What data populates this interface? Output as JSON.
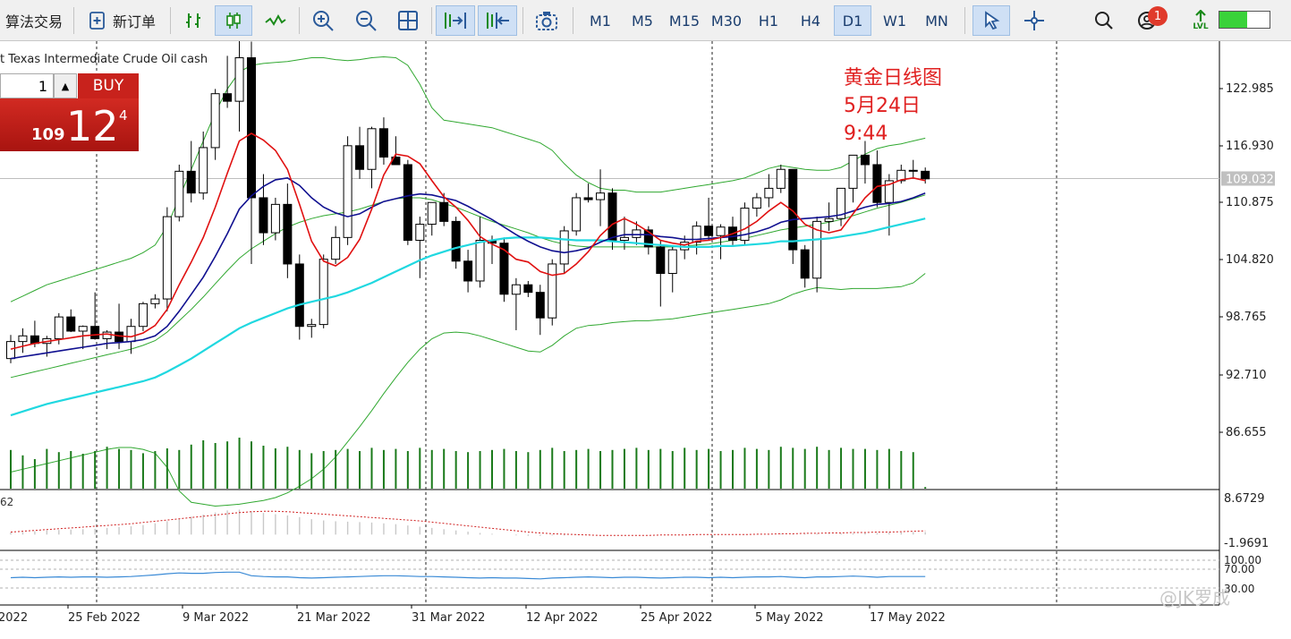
{
  "toolbar": {
    "algo_trading": "算法交易",
    "new_order": "新订单",
    "timeframes": [
      "M1",
      "M5",
      "M15",
      "M30",
      "H1",
      "H4",
      "D1",
      "W1",
      "MN"
    ],
    "active_timeframe": "D1",
    "notification_count": "1",
    "signal_label": "LVL"
  },
  "chart": {
    "symbol_title": "t Texas Intermediate Crude Oil cash",
    "current_price": "109.032",
    "price_labels": [
      "122.985",
      "116.930",
      "110.875",
      "104.820",
      "98.765",
      "92.710",
      "86.655"
    ],
    "indicator1_name": "62",
    "indicator1_labels": [
      "8.6729",
      "-1.9691"
    ],
    "indicator2_labels": [
      "100.00",
      "70.00",
      "30.00"
    ],
    "date_labels": [
      "2022",
      "25 Feb 2022",
      "9 Mar 2022",
      "21 Mar 2022",
      "31 Mar 2022",
      "12 Apr 2022",
      "25 Apr 2022",
      "5 May 2022",
      "17 May 2022"
    ]
  },
  "trade_panel": {
    "quantity": "1",
    "buy_label": "BUY",
    "price_small": "109",
    "price_big": "12",
    "price_sup": "4"
  },
  "annotation": {
    "line1": "黄金日线图",
    "line2": "5月24日",
    "line3": "9:44"
  },
  "watermark": "@JK罗成",
  "colors": {
    "bull_candle": "#ffffff",
    "bear_candle": "#000000",
    "ma_fast": "#e01010",
    "ma_mid": "#101090",
    "ma_slow": "#20d8e0",
    "bands": "#30a830",
    "volume": "#1a7a1a",
    "annotation": "#e02020"
  },
  "chart_data": {
    "type": "candlestick",
    "candles": [
      [
        90.0,
        92.5,
        89.5,
        91.8
      ],
      [
        91.8,
        93.2,
        90.6,
        92.4
      ],
      [
        92.4,
        94.0,
        91.2,
        91.6
      ],
      [
        91.6,
        92.4,
        90.2,
        92.1
      ],
      [
        92.1,
        94.8,
        91.5,
        94.4
      ],
      [
        94.4,
        95.2,
        92.8,
        92.9
      ],
      [
        92.9,
        93.5,
        91.0,
        93.4
      ],
      [
        93.4,
        97.0,
        92.0,
        92.1
      ],
      [
        92.1,
        93.0,
        91.0,
        92.8
      ],
      [
        92.8,
        95.8,
        91.0,
        91.8
      ],
      [
        91.8,
        94.2,
        90.5,
        93.4
      ],
      [
        93.4,
        96.0,
        92.9,
        95.8
      ],
      [
        95.8,
        96.8,
        95.3,
        96.3
      ],
      [
        96.3,
        106.0,
        95.0,
        105.0
      ],
      [
        105.0,
        110.5,
        104.5,
        109.8
      ],
      [
        109.8,
        113.0,
        106.5,
        107.5
      ],
      [
        107.5,
        114.0,
        106.8,
        112.3
      ],
      [
        112.3,
        118.5,
        111.0,
        118.0
      ],
      [
        118.0,
        122.0,
        116.5,
        117.2
      ],
      [
        117.2,
        124.5,
        114.0,
        121.8
      ],
      [
        121.8,
        123.5,
        100.0,
        107.0
      ],
      [
        107.0,
        109.5,
        102.0,
        103.3
      ],
      [
        103.3,
        107.0,
        102.5,
        106.3
      ],
      [
        106.3,
        108.5,
        98.5,
        100.0
      ],
      [
        100.0,
        101.0,
        92.0,
        93.4
      ],
      [
        93.4,
        94.2,
        92.2,
        93.6
      ],
      [
        93.6,
        101.0,
        93.2,
        100.5
      ],
      [
        100.5,
        104.0,
        100.0,
        102.8
      ],
      [
        102.8,
        113.5,
        102.0,
        112.5
      ],
      [
        112.5,
        114.5,
        109.0,
        110.0
      ],
      [
        110.0,
        114.5,
        108.0,
        114.3
      ],
      [
        114.3,
        115.5,
        110.5,
        111.3
      ],
      [
        111.3,
        113.5,
        110.5,
        110.5
      ],
      [
        110.5,
        111.0,
        102.0,
        102.5
      ],
      [
        102.5,
        105.0,
        98.5,
        104.2
      ],
      [
        104.2,
        106.5,
        103.0,
        106.5
      ],
      [
        106.5,
        107.5,
        104.0,
        104.5
      ],
      [
        104.5,
        105.0,
        99.5,
        100.3
      ],
      [
        100.3,
        101.5,
        97.0,
        98.2
      ],
      [
        98.2,
        105.0,
        97.5,
        102.5
      ],
      [
        102.5,
        103.0,
        100.0,
        102.2
      ],
      [
        102.2,
        102.8,
        96.0,
        96.8
      ],
      [
        96.8,
        98.5,
        93.0,
        97.8
      ],
      [
        97.8,
        98.2,
        96.5,
        97.0
      ],
      [
        97.0,
        97.8,
        92.5,
        94.3
      ],
      [
        94.3,
        100.5,
        93.5,
        100.0
      ],
      [
        100.0,
        104.0,
        99.0,
        103.5
      ],
      [
        103.5,
        107.5,
        103.0,
        107.0
      ],
      [
        107.0,
        108.5,
        106.5,
        106.8
      ],
      [
        106.8,
        110.0,
        104.0,
        107.5
      ],
      [
        107.5,
        108.0,
        101.5,
        102.5
      ],
      [
        102.5,
        105.0,
        101.5,
        102.8
      ],
      [
        102.8,
        104.5,
        102.0,
        103.6
      ],
      [
        103.6,
        104.0,
        101.0,
        101.8
      ],
      [
        101.8,
        102.5,
        95.5,
        99.0
      ],
      [
        99.0,
        101.8,
        97.0,
        101.5
      ],
      [
        101.5,
        103.0,
        100.5,
        102.3
      ],
      [
        102.3,
        104.5,
        101.0,
        104.0
      ],
      [
        104.0,
        107.0,
        102.5,
        103.0
      ],
      [
        103.0,
        104.2,
        100.5,
        103.9
      ],
      [
        103.9,
        105.0,
        102.0,
        102.5
      ],
      [
        102.5,
        106.5,
        102.0,
        105.9
      ],
      [
        105.9,
        107.5,
        105.0,
        107.0
      ],
      [
        107.0,
        109.5,
        106.0,
        108.0
      ],
      [
        108.0,
        110.5,
        107.5,
        110.0
      ],
      [
        110.0,
        110.0,
        100.0,
        101.5
      ],
      [
        101.5,
        102.0,
        97.5,
        98.5
      ],
      [
        98.5,
        105.0,
        97.0,
        104.5
      ],
      [
        104.5,
        106.5,
        103.5,
        104.8
      ],
      [
        104.8,
        108.0,
        104.0,
        108.0
      ],
      [
        108.0,
        111.5,
        106.5,
        111.5
      ],
      [
        111.5,
        113.0,
        108.5,
        110.5
      ],
      [
        110.5,
        112.0,
        106.0,
        106.5
      ],
      [
        106.5,
        109.5,
        103.0,
        108.8
      ],
      [
        108.8,
        110.5,
        108.5,
        109.9
      ],
      [
        109.9,
        111.0,
        109.0,
        109.8
      ],
      [
        109.8,
        110.2,
        108.5,
        109.0
      ]
    ],
    "ma_fast": [
      91.0,
      91.3,
      91.6,
      91.8,
      92.0,
      92.2,
      92.4,
      92.5,
      92.6,
      92.4,
      92.3,
      92.7,
      93.5,
      95.2,
      97.8,
      100.2,
      102.8,
      106.0,
      109.6,
      113.0,
      113.8,
      113.1,
      112.0,
      110.0,
      106.3,
      102.4,
      100.3,
      99.8,
      100.7,
      102.6,
      105.8,
      109.4,
      111.6,
      111.4,
      110.6,
      108.8,
      107.1,
      106.0,
      104.6,
      102.9,
      102.1,
      101.5,
      100.5,
      100.2,
      99.2,
      98.8,
      99.0,
      100.0,
      101.3,
      103.0,
      104.2,
      104.8,
      104.2,
      103.4,
      102.5,
      102.2,
      102.0,
      102.4,
      102.5,
      102.8,
      103.2,
      103.7,
      104.5,
      105.6,
      106.5,
      105.6,
      104.2,
      103.6,
      103.3,
      103.6,
      105.3,
      107.0,
      108.2,
      108.4,
      108.9,
      109.1,
      108.8
    ],
    "ma_mid": [
      90.0,
      90.2,
      90.4,
      90.6,
      90.8,
      91.0,
      91.2,
      91.4,
      91.6,
      91.7,
      91.8,
      92.0,
      92.4,
      93.4,
      95.0,
      96.8,
      98.6,
      100.8,
      103.2,
      105.8,
      107.2,
      108.2,
      108.9,
      109.1,
      108.3,
      107.0,
      106.0,
      105.4,
      105.0,
      105.3,
      106.0,
      106.6,
      106.9,
      107.2,
      107.4,
      107.3,
      107.0,
      106.7,
      106.1,
      105.4,
      104.7,
      103.9,
      103.1,
      102.4,
      101.8,
      101.4,
      101.2,
      101.4,
      101.7,
      102.3,
      102.8,
      103.1,
      103.1,
      103.1,
      102.9,
      102.8,
      102.6,
      102.6,
      102.7,
      102.8,
      102.9,
      103.1,
      103.4,
      103.8,
      104.4,
      104.7,
      104.8,
      104.9,
      105.0,
      105.2,
      105.6,
      106.0,
      106.3,
      106.4,
      106.6,
      107.0,
      107.5
    ],
    "ma_slow": [
      84.0,
      84.4,
      84.8,
      85.2,
      85.5,
      85.8,
      86.1,
      86.4,
      86.7,
      87.0,
      87.3,
      87.6,
      88.0,
      88.6,
      89.3,
      90.0,
      90.8,
      91.6,
      92.4,
      93.2,
      93.8,
      94.3,
      94.8,
      95.3,
      95.7,
      96.0,
      96.3,
      96.6,
      97.0,
      97.5,
      98.0,
      98.6,
      99.2,
      99.8,
      100.4,
      100.9,
      101.3,
      101.7,
      102.0,
      102.3,
      102.5,
      102.7,
      102.8,
      102.8,
      102.8,
      102.7,
      102.6,
      102.5,
      102.5,
      102.5,
      102.4,
      102.3,
      102.2,
      102.1,
      102.0,
      101.9,
      101.8,
      101.8,
      101.8,
      101.9,
      101.9,
      102.0,
      102.1,
      102.2,
      102.4,
      102.4,
      102.5,
      102.6,
      102.7,
      102.9,
      103.1,
      103.3,
      103.6,
      103.9,
      104.2,
      104.5,
      104.8
    ],
    "band_upper": [
      96.0,
      96.6,
      97.2,
      97.8,
      98.2,
      98.6,
      99.0,
      99.4,
      99.8,
      100.2,
      100.6,
      101.2,
      102.0,
      104.0,
      107.0,
      110.0,
      113.0,
      116.0,
      118.5,
      120.3,
      121.0,
      121.2,
      121.3,
      121.4,
      121.6,
      121.8,
      121.8,
      121.6,
      121.5,
      121.6,
      121.8,
      121.9,
      121.8,
      121.0,
      119.0,
      116.5,
      115.2,
      115.0,
      114.8,
      114.6,
      114.4,
      114.0,
      113.6,
      113.2,
      112.8,
      112.0,
      110.6,
      109.4,
      108.6,
      108.0,
      107.8,
      107.8,
      107.6,
      107.6,
      107.6,
      107.8,
      108.0,
      108.2,
      108.4,
      108.6,
      108.8,
      109.1,
      109.6,
      110.1,
      110.4,
      110.2,
      110.0,
      109.9,
      109.9,
      110.2,
      110.9,
      111.6,
      112.2,
      112.5,
      112.7,
      113.0,
      113.3
    ],
    "band_mid": [
      88.0,
      88.3,
      88.6,
      88.9,
      89.2,
      89.5,
      89.8,
      90.1,
      90.4,
      90.7,
      91.0,
      91.4,
      91.9,
      92.8,
      94.0,
      95.2,
      96.5,
      97.9,
      99.3,
      100.6,
      101.6,
      102.4,
      103.2,
      103.9,
      104.4,
      104.8,
      105.1,
      105.3,
      105.5,
      105.8,
      106.2,
      106.6,
      106.9,
      107.0,
      107.0,
      106.8,
      106.4,
      106.0,
      105.5,
      105.0,
      104.5,
      104.1,
      103.7,
      103.3,
      102.8,
      102.4,
      102.1,
      101.9,
      101.8,
      101.8,
      101.8,
      101.8,
      101.8,
      101.8,
      101.8,
      101.8,
      101.9,
      102.0,
      102.1,
      102.3,
      102.5,
      102.7,
      103.0,
      103.3,
      103.6,
      103.8,
      104.0,
      104.2,
      104.4,
      104.7,
      105.1,
      105.5,
      105.9,
      106.2,
      106.5,
      106.9,
      107.3
    ],
    "band_lower": [
      78.0,
      78.3,
      78.6,
      78.9,
      79.2,
      79.5,
      79.8,
      80.1,
      80.4,
      80.6,
      80.6,
      80.4,
      80.0,
      78.5,
      76.0,
      74.8,
      74.6,
      74.4,
      74.5,
      74.6,
      74.8,
      75.0,
      75.3,
      75.8,
      76.5,
      77.3,
      78.3,
      79.6,
      81.2,
      82.8,
      84.5,
      86.3,
      88.0,
      89.6,
      91.0,
      92.1,
      92.7,
      92.8,
      92.7,
      92.4,
      92.0,
      91.6,
      91.2,
      90.8,
      90.7,
      91.4,
      92.4,
      93.2,
      93.5,
      93.6,
      93.8,
      93.9,
      94.0,
      94.0,
      94.1,
      94.2,
      94.4,
      94.6,
      94.8,
      95.0,
      95.2,
      95.4,
      95.6,
      95.8,
      96.2,
      96.8,
      97.2,
      97.5,
      97.4,
      97.3,
      97.4,
      97.4,
      97.4,
      97.5,
      97.6,
      98.0,
      99.0
    ],
    "volume": [
      0.72,
      0.62,
      0.55,
      0.74,
      0.68,
      0.7,
      0.65,
      0.7,
      0.78,
      0.74,
      0.72,
      0.66,
      0.7,
      0.75,
      0.72,
      0.82,
      0.9,
      0.85,
      0.88,
      0.95,
      0.88,
      0.8,
      0.75,
      0.78,
      0.72,
      0.66,
      0.7,
      0.72,
      0.74,
      0.7,
      0.76,
      0.72,
      0.74,
      0.7,
      0.76,
      0.72,
      0.74,
      0.7,
      0.68,
      0.7,
      0.72,
      0.74,
      0.7,
      0.68,
      0.72,
      0.76,
      0.7,
      0.72,
      0.74,
      0.7,
      0.72,
      0.74,
      0.76,
      0.72,
      0.74,
      0.7,
      0.76,
      0.72,
      0.74,
      0.7,
      0.72,
      0.76,
      0.74,
      0.72,
      0.78,
      0.76,
      0.74,
      0.78,
      0.72,
      0.76,
      0.74,
      0.74,
      0.72,
      0.74,
      0.7,
      0.68,
      0.03
    ],
    "macd_hist": [
      0.5,
      0.6,
      0.8,
      1.0,
      1.1,
      1.2,
      1.3,
      1.4,
      1.6,
      1.8,
      2.0,
      2.3,
      2.7,
      3.2,
      3.8,
      4.3,
      4.8,
      5.3,
      5.8,
      6.0,
      5.6,
      5.2,
      4.9,
      4.6,
      4.2,
      3.7,
      3.4,
      3.2,
      3.1,
      3.0,
      2.9,
      2.7,
      2.5,
      2.2,
      1.9,
      1.6,
      1.3,
      1.0,
      0.7,
      0.4,
      0.2,
      0.0,
      -0.2,
      -0.3,
      -0.3,
      -0.2,
      -0.2,
      -0.1,
      -0.1,
      0.0,
      0.0,
      0.0,
      0.0,
      0.0,
      0.0,
      0.0,
      0.0,
      0.0,
      0.0,
      0.0,
      0.0,
      0.1,
      0.1,
      0.1,
      0.2,
      0.2,
      0.2,
      0.2,
      0.2,
      0.3,
      0.3,
      0.4,
      0.4,
      0.5,
      0.5,
      0.6,
      0.6
    ],
    "macd_signal": [
      0.6,
      0.8,
      1.0,
      1.2,
      1.4,
      1.6,
      1.8,
      2.0,
      2.2,
      2.4,
      2.6,
      2.9,
      3.2,
      3.5,
      3.8,
      4.1,
      4.4,
      4.7,
      5.0,
      5.3,
      5.5,
      5.6,
      5.6,
      5.5,
      5.3,
      5.1,
      4.9,
      4.7,
      4.5,
      4.3,
      4.1,
      3.9,
      3.7,
      3.5,
      3.3,
      3.0,
      2.7,
      2.4,
      2.1,
      1.8,
      1.5,
      1.2,
      0.9,
      0.6,
      0.4,
      0.2,
      0.1,
      0.0,
      -0.1,
      -0.2,
      -0.2,
      -0.2,
      -0.2,
      -0.2,
      -0.1,
      -0.1,
      -0.1,
      0.0,
      0.0,
      0.0,
      0.0,
      0.0,
      0.1,
      0.1,
      0.2,
      0.2,
      0.3,
      0.3,
      0.4,
      0.4,
      0.5,
      0.5,
      0.6,
      0.6,
      0.7,
      0.8,
      0.9
    ],
    "rsi": [
      56,
      57,
      56,
      57,
      58,
      57,
      58,
      58,
      57,
      58,
      59,
      61,
      63,
      66,
      68,
      67,
      67,
      69,
      70,
      70,
      61,
      59,
      58,
      58,
      56,
      55,
      56,
      57,
      58,
      59,
      60,
      61,
      61,
      60,
      59,
      59,
      58,
      57,
      56,
      55,
      56,
      55,
      55,
      54,
      53,
      55,
      56,
      57,
      58,
      57,
      56,
      57,
      57,
      56,
      55,
      56,
      57,
      57,
      56,
      57,
      56,
      57,
      58,
      58,
      59,
      57,
      56,
      58,
      58,
      59,
      60,
      59,
      57,
      59,
      59,
      59,
      59
    ]
  }
}
